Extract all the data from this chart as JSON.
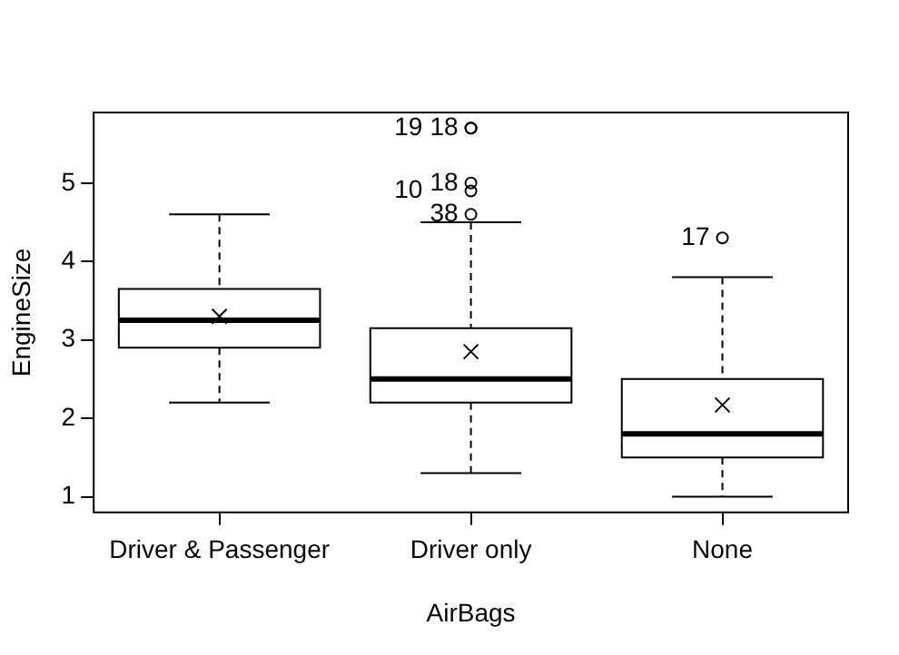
{
  "chart_data": {
    "type": "box",
    "xlabel": "AirBags",
    "ylabel": "EngineSize",
    "categories": [
      "Driver & Passenger",
      "Driver only",
      "None"
    ],
    "ylim": [
      0.8,
      5.9
    ],
    "yticks": [
      1,
      2,
      3,
      4,
      5
    ],
    "boxes": [
      {
        "low": 2.2,
        "q1": 2.9,
        "median": 3.25,
        "q3": 3.65,
        "high": 4.6,
        "mean": 3.3
      },
      {
        "low": 1.3,
        "q1": 2.2,
        "median": 2.5,
        "q3": 3.15,
        "high": 4.5,
        "mean": 2.85
      },
      {
        "low": 1.0,
        "q1": 1.5,
        "median": 1.8,
        "q3": 2.5,
        "high": 3.8,
        "mean": 2.17
      }
    ],
    "series": [
      {
        "type": "scatter",
        "color": "#000000",
        "x": [
          "Driver only",
          "Driver only",
          "Driver only",
          "Driver only",
          "Driver only",
          "None"
        ],
        "values": [
          4.6,
          4.9,
          5.0,
          5.7,
          5.7,
          4.3
        ]
      }
    ],
    "marker": "circle",
    "annotations": [
      {
        "text": "38",
        "x": "Driver only",
        "y": 4.6
      },
      {
        "text": "10",
        "x": "Driver only",
        "y": 4.9
      },
      {
        "text": "18",
        "x": "Driver only",
        "y": 5.0
      },
      {
        "text": "18",
        "x": "Driver only",
        "y": 5.7
      },
      {
        "text": "19",
        "x": "Driver only",
        "y": 5.7
      },
      {
        "text": "17",
        "x": "None",
        "y": 4.3
      }
    ]
  }
}
